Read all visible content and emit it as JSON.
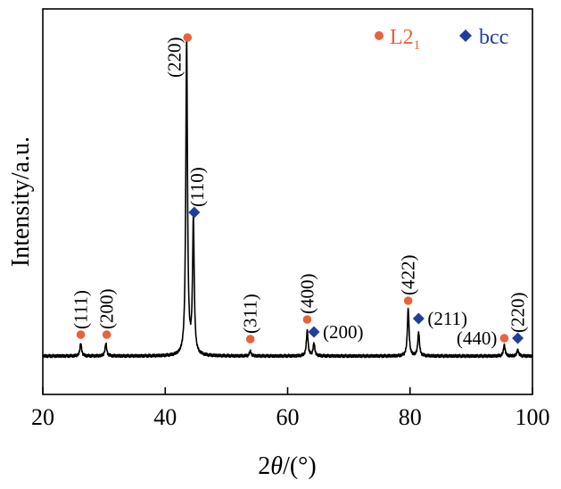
{
  "chart_data": {
    "type": "line",
    "xlabel_prefix": "2",
    "xlabel_var": "θ",
    "xlabel_unit": "/(°)",
    "ylabel": "Intensity/a.u.",
    "xlim": [
      20,
      100
    ],
    "xticks": [
      "20",
      "40",
      "60",
      "80",
      "100"
    ],
    "legend": {
      "placement": "top-right",
      "items": [
        {
          "marker": "circle",
          "label": "L2",
          "subscript": "1",
          "color": "#e8623a"
        },
        {
          "marker": "diamond",
          "label": "bcc",
          "color": "#1f3f9e"
        }
      ]
    },
    "baseline": 0.02,
    "peaks": [
      {
        "x": 26.2,
        "height": 0.04
      },
      {
        "x": 30.3,
        "height": 0.04
      },
      {
        "x": 43.5,
        "height": 1.0
      },
      {
        "x": 44.6,
        "height": 0.42
      },
      {
        "x": 53.9,
        "height": 0.015
      },
      {
        "x": 63.2,
        "height": 0.08
      },
      {
        "x": 64.3,
        "height": 0.04
      },
      {
        "x": 79.7,
        "height": 0.15
      },
      {
        "x": 81.4,
        "height": 0.075
      },
      {
        "x": 95.4,
        "height": 0.035
      },
      {
        "x": 97.6,
        "height": 0.02
      }
    ],
    "markers": [
      {
        "phase": "L21",
        "x": 26.2,
        "hkl": "(111)"
      },
      {
        "phase": "L21",
        "x": 30.3,
        "hkl": "(200)"
      },
      {
        "phase": "L21",
        "x": 43.5,
        "hkl": "(220)"
      },
      {
        "phase": "bcc",
        "x": 44.6,
        "hkl": "(110)"
      },
      {
        "phase": "L21",
        "x": 53.9,
        "hkl": "(311)"
      },
      {
        "phase": "L21",
        "x": 63.2,
        "hkl": "(400)"
      },
      {
        "phase": "bcc",
        "x": 64.3,
        "hkl": "(200)"
      },
      {
        "phase": "L21",
        "x": 79.7,
        "hkl": "(422)"
      },
      {
        "phase": "bcc",
        "x": 81.4,
        "hkl": "(211)"
      },
      {
        "phase": "L21",
        "x": 95.4,
        "hkl": "(440)"
      },
      {
        "phase": "bcc",
        "x": 97.6,
        "hkl": "(220)"
      }
    ],
    "grid": false
  }
}
